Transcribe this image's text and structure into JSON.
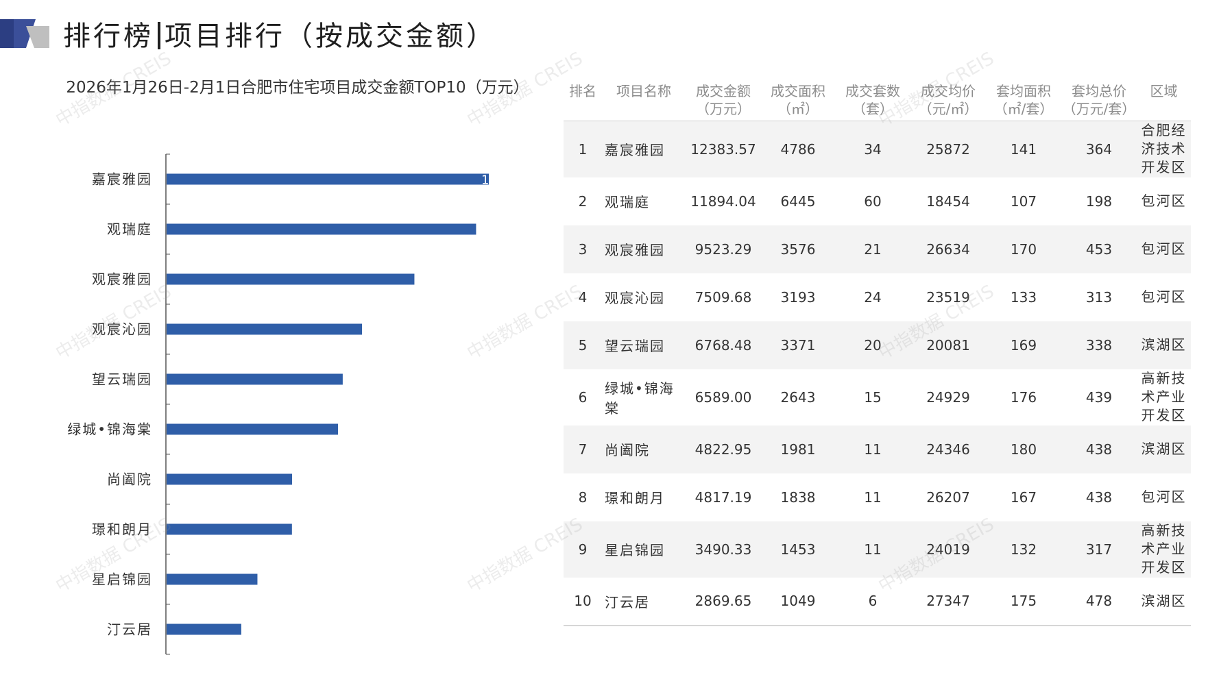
{
  "header": {
    "title_left": "排行榜",
    "title_right": "项目排行（按成交金额）"
  },
  "watermark": "中指数据 CREIS",
  "colors": {
    "bar": "#2f5ea8",
    "axis": "#555555",
    "header_dark": "#2c3e82"
  },
  "chart_data": {
    "type": "bar",
    "orientation": "horizontal",
    "title": "2026年1月26日-2月1日合肥市住宅项目成交金额TOP10（万元）",
    "categories": [
      "嘉宸雅园",
      "观瑞庭",
      "观宸雅园",
      "观宸沁园",
      "望云瑞园",
      "绿城•锦海棠",
      "尚阖院",
      "璟和朗月",
      "星启锦园",
      "汀云居"
    ],
    "values": [
      12383.57,
      11894.04,
      9523.29,
      7509.68,
      6768.48,
      6589.0,
      4822.95,
      4817.19,
      3490.33,
      2869.65
    ],
    "data_labels": [
      "1",
      "",
      "",
      "",
      "",
      "",
      "",
      "",
      "",
      ""
    ],
    "xlim": [
      0,
      12383.57
    ],
    "grid": false
  },
  "table": {
    "headers": [
      [
        "排名"
      ],
      [
        "项目名称"
      ],
      [
        "成交金额",
        "（万元）"
      ],
      [
        "成交面积",
        "（㎡）"
      ],
      [
        "成交套数",
        "（套）"
      ],
      [
        "成交均价",
        "（元/㎡）"
      ],
      [
        "套均面积",
        "（㎡/套）"
      ],
      [
        "套均总价",
        "（万元/套）"
      ],
      [
        "区域"
      ]
    ],
    "rows": [
      [
        "1",
        "嘉宸雅园",
        "12383.57",
        "4786",
        "34",
        "25872",
        "141",
        "364",
        "合肥经济技术开发区"
      ],
      [
        "2",
        "观瑞庭",
        "11894.04",
        "6445",
        "60",
        "18454",
        "107",
        "198",
        "包河区"
      ],
      [
        "3",
        "观宸雅园",
        "9523.29",
        "3576",
        "21",
        "26634",
        "170",
        "453",
        "包河区"
      ],
      [
        "4",
        "观宸沁园",
        "7509.68",
        "3193",
        "24",
        "23519",
        "133",
        "313",
        "包河区"
      ],
      [
        "5",
        "望云瑞园",
        "6768.48",
        "3371",
        "20",
        "20081",
        "169",
        "338",
        "滨湖区"
      ],
      [
        "6",
        "绿城•锦海棠",
        "6589.00",
        "2643",
        "15",
        "24929",
        "176",
        "439",
        "高新技术产业开发区"
      ],
      [
        "7",
        "尚阖院",
        "4822.95",
        "1981",
        "11",
        "24346",
        "180",
        "438",
        "滨湖区"
      ],
      [
        "8",
        "璟和朗月",
        "4817.19",
        "1838",
        "11",
        "26207",
        "167",
        "438",
        "包河区"
      ],
      [
        "9",
        "星启锦园",
        "3490.33",
        "1453",
        "11",
        "24019",
        "132",
        "317",
        "高新技术产业开发区"
      ],
      [
        "10",
        "汀云居",
        "2869.65",
        "1049",
        "6",
        "27347",
        "175",
        "478",
        "滨湖区"
      ]
    ]
  }
}
